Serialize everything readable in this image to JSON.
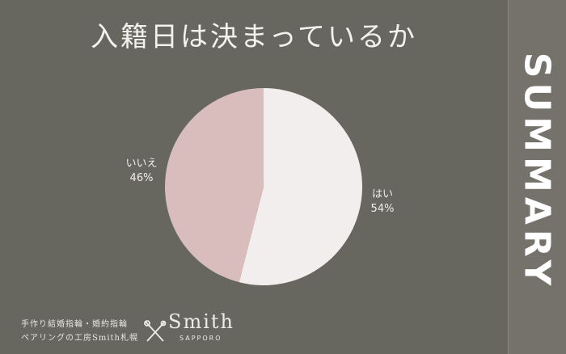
{
  "title": "入籍日は決まっているか",
  "side_label": "SUMMARY",
  "chart_data": {
    "type": "pie",
    "title": "入籍日は決まっているか",
    "slices": [
      {
        "label": "はい",
        "value": 54,
        "display": "54%",
        "color": "#f3eeee"
      },
      {
        "label": "いいえ",
        "value": 46,
        "display": "46%",
        "color": "#d9bdbd"
      }
    ],
    "start": "top",
    "direction": "clockwise"
  },
  "footer": {
    "line1": "手作り結婚指輪・婚約指輪",
    "line2": "ペアリングの工房Smith札幌",
    "logo_name": "Smith",
    "logo_sub": "SAPPORO"
  },
  "colors": {
    "background": "#67665f",
    "sidebar": "#74726a"
  }
}
